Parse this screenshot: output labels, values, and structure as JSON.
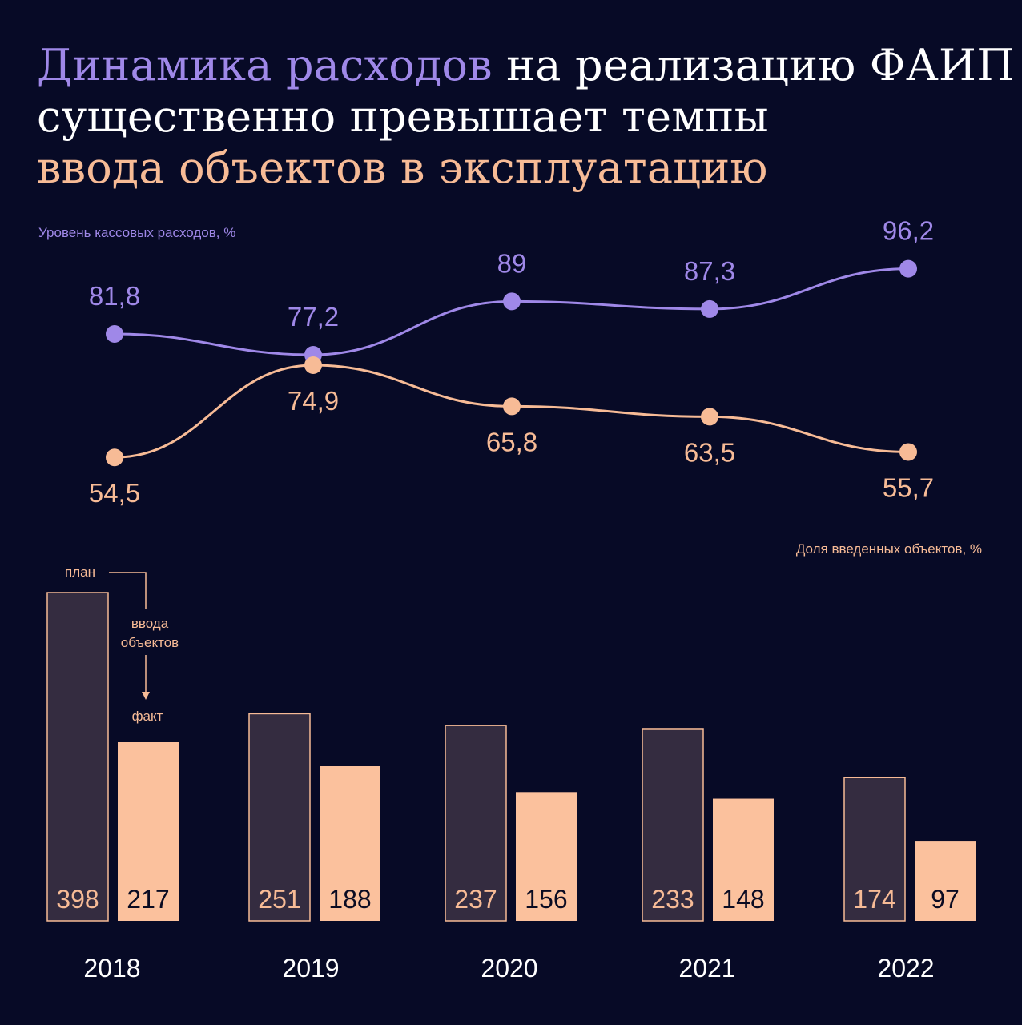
{
  "title": {
    "l1a": "Динамика расходов",
    "l1b": " на реализацию ФАИП",
    "l2": "существенно превышает темпы",
    "l3": "ввода объектов в эксплуатацию"
  },
  "chart_data": {
    "type": "bar+line",
    "categories": [
      "2018",
      "2019",
      "2020",
      "2021",
      "2022"
    ],
    "lines": [
      {
        "name": "Уровень кассовых расходов, %",
        "values": [
          81.8,
          77.2,
          89,
          87.3,
          96.2
        ],
        "labels": [
          "81,8",
          "77,2",
          "89",
          "87,3",
          "96,2"
        ],
        "color": "#9f88e8"
      },
      {
        "name": "Доля введенных объектов, %",
        "values": [
          54.5,
          74.9,
          65.8,
          63.5,
          55.7
        ],
        "labels": [
          "54,5",
          "74,9",
          "65,8",
          "63,5",
          "55,7"
        ],
        "color": "#f7bb96"
      }
    ],
    "bars": [
      {
        "name": "план",
        "values": [
          398,
          251,
          237,
          233,
          174
        ],
        "color": "#342c40",
        "stroke": "#f7bb96"
      },
      {
        "name": "факт",
        "values": [
          217,
          188,
          156,
          148,
          97
        ],
        "color": "#fbc19d"
      }
    ],
    "annotation": {
      "plan": "план",
      "middle1": "ввода",
      "middle2": "объектов",
      "fact": "факт"
    }
  }
}
